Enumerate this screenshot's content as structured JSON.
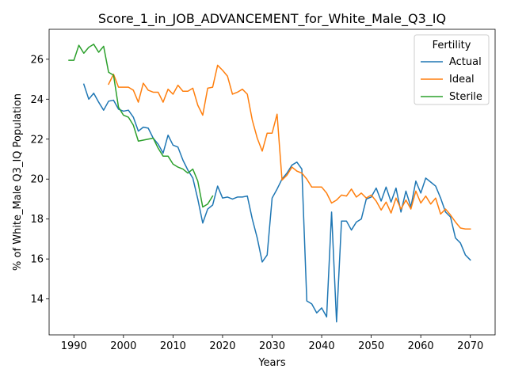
{
  "chart_data": {
    "type": "line",
    "title": "Score_1_in_JOB_ADVANCEMENT_for_White_Male_Q3_IQ",
    "xlabel": "Years",
    "ylabel": "% of White_Male Q3_IQ Population",
    "xlim": [
      1985,
      2075
    ],
    "ylim": [
      12.2,
      27.5
    ],
    "xticks": [
      1990,
      2000,
      2010,
      2020,
      2030,
      2040,
      2050,
      2060,
      2070
    ],
    "yticks": [
      14,
      16,
      18,
      20,
      22,
      24,
      26
    ],
    "grid": false,
    "legend": {
      "title": "Fertility",
      "placement": "top-right"
    },
    "series": [
      {
        "name": "Actual",
        "color": "#1f77b4",
        "x": [
          1992,
          1993,
          1994,
          1995,
          1996,
          1997,
          1998,
          1999,
          2000,
          2001,
          2002,
          2003,
          2004,
          2005,
          2006,
          2007,
          2008,
          2009,
          2010,
          2011,
          2012,
          2013,
          2014,
          2015,
          2016,
          2017,
          2018,
          2019,
          2020,
          2021,
          2022,
          2023,
          2024,
          2025,
          2026,
          2027,
          2028,
          2029,
          2030,
          2031,
          2032,
          2033,
          2034,
          2035,
          2036,
          2037,
          2038,
          2039,
          2040,
          2041,
          2042,
          2043,
          2044,
          2045,
          2046,
          2047,
          2048,
          2049,
          2050,
          2051,
          2052,
          2053,
          2054,
          2055,
          2056,
          2057,
          2058,
          2059,
          2060,
          2061,
          2062,
          2063,
          2064,
          2065,
          2066,
          2067,
          2068,
          2069,
          2070
        ],
        "values": [
          24.75,
          24.0,
          24.3,
          23.85,
          23.45,
          23.9,
          23.95,
          23.5,
          23.4,
          23.45,
          23.1,
          22.4,
          22.6,
          22.55,
          22.05,
          21.75,
          21.3,
          22.2,
          21.7,
          21.6,
          20.95,
          20.45,
          20.05,
          19.0,
          17.8,
          18.5,
          18.7,
          19.65,
          19.05,
          19.1,
          19.0,
          19.1,
          19.1,
          19.15,
          18.0,
          17.05,
          15.85,
          16.2,
          19.05,
          19.5,
          20.0,
          20.3,
          20.7,
          20.85,
          20.5,
          13.9,
          13.75,
          13.3,
          13.55,
          13.1,
          18.35,
          12.85,
          17.9,
          17.9,
          17.45,
          17.85,
          18.0,
          19.0,
          19.1,
          19.55,
          18.9,
          19.6,
          18.85,
          19.55,
          18.35,
          19.4,
          18.6,
          19.9,
          19.3,
          20.05,
          19.85,
          19.65,
          19.05,
          18.35,
          18.1,
          17.05,
          16.8,
          16.2,
          15.95
        ]
      },
      {
        "name": "Ideal",
        "color": "#ff7f0e",
        "x": [
          1997,
          1998,
          1999,
          2000,
          2001,
          2002,
          2003,
          2004,
          2005,
          2006,
          2007,
          2008,
          2009,
          2010,
          2011,
          2012,
          2013,
          2014,
          2015,
          2016,
          2017,
          2018,
          2019,
          2020,
          2021,
          2022,
          2023,
          2024,
          2025,
          2026,
          2027,
          2028,
          2029,
          2030,
          2031,
          2032,
          2033,
          2034,
          2035,
          2036,
          2037,
          2038,
          2039,
          2040,
          2041,
          2042,
          2043,
          2044,
          2045,
          2046,
          2047,
          2048,
          2049,
          2050,
          2051,
          2052,
          2053,
          2054,
          2055,
          2056,
          2057,
          2058,
          2059,
          2060,
          2061,
          2062,
          2063,
          2064,
          2065,
          2066,
          2067,
          2068,
          2069,
          2070
        ],
        "values": [
          24.75,
          25.25,
          24.6,
          24.6,
          24.6,
          24.45,
          23.85,
          24.8,
          24.45,
          24.35,
          24.35,
          23.85,
          24.5,
          24.25,
          24.7,
          24.4,
          24.4,
          24.55,
          23.7,
          23.2,
          24.55,
          24.6,
          25.7,
          25.45,
          25.15,
          24.25,
          24.35,
          24.5,
          24.25,
          22.95,
          22.05,
          21.4,
          22.3,
          22.3,
          23.25,
          19.95,
          20.2,
          20.6,
          20.4,
          20.3,
          20.0,
          19.6,
          19.6,
          19.6,
          19.3,
          18.8,
          18.95,
          19.2,
          19.15,
          19.5,
          19.1,
          19.3,
          19.05,
          19.2,
          18.9,
          18.45,
          18.85,
          18.3,
          19.05,
          18.5,
          18.95,
          18.5,
          19.4,
          18.8,
          19.15,
          18.75,
          19.05,
          18.25,
          18.5,
          18.2,
          17.85,
          17.55,
          17.5,
          17.5
        ]
      },
      {
        "name": "Sterile",
        "color": "#2ca02c",
        "x": [
          1989,
          1990,
          1991,
          1992,
          1993,
          1994,
          1995,
          1996,
          1997,
          1998,
          1999,
          2000,
          2001,
          2002,
          2003,
          2004,
          2005,
          2006,
          2007,
          2008,
          2009,
          2010,
          2011,
          2012,
          2013,
          2014,
          2015,
          2016,
          2017,
          2018
        ],
        "values": [
          25.95,
          25.95,
          26.7,
          26.3,
          26.6,
          26.75,
          26.35,
          26.65,
          25.35,
          25.2,
          23.6,
          23.2,
          23.1,
          22.7,
          21.9,
          21.95,
          22.0,
          22.05,
          21.55,
          21.15,
          21.15,
          20.75,
          20.6,
          20.5,
          20.3,
          20.5,
          19.9,
          18.6,
          18.75,
          19.15
        ]
      }
    ]
  }
}
